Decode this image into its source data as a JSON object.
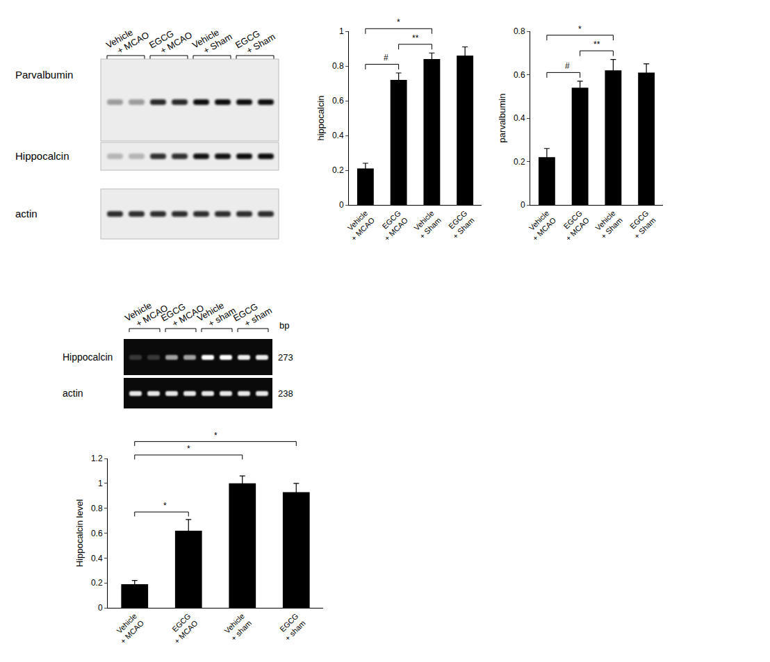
{
  "chart_data": [
    {
      "type": "bar",
      "ylabel": "hippocalcin",
      "categories": [
        "Vehicle + MCAO",
        "EGCG + MCAO",
        "Vehicle + Sham",
        "EGCG + Sham"
      ],
      "values": [
        0.21,
        0.72,
        0.84,
        0.86
      ],
      "errors": [
        0.03,
        0.04,
        0.035,
        0.05
      ],
      "color": "#000000",
      "ylim": [
        0,
        1
      ],
      "yticks": [
        0,
        0.2,
        0.4,
        0.6,
        0.8,
        1
      ],
      "grid": false,
      "comparisons": [
        {
          "from": 0,
          "to": 2,
          "label": "*"
        },
        {
          "from": 0,
          "to": 1,
          "label": "#"
        },
        {
          "from": 1,
          "to": 2,
          "label": "**"
        }
      ]
    },
    {
      "type": "bar",
      "ylabel": "parvalbumin",
      "categories": [
        "Vehicle + MCAO",
        "EGCG + MCAO",
        "Vehicle + Sham",
        "EGCG + Sham"
      ],
      "values": [
        0.22,
        0.54,
        0.62,
        0.61
      ],
      "errors": [
        0.04,
        0.03,
        0.05,
        0.04
      ],
      "color": "#000000",
      "ylim": [
        0,
        0.8
      ],
      "yticks": [
        0,
        0.2,
        0.4,
        0.6,
        0.8
      ],
      "grid": false,
      "comparisons": [
        {
          "from": 0,
          "to": 2,
          "label": "*"
        },
        {
          "from": 0,
          "to": 1,
          "label": "#"
        },
        {
          "from": 1,
          "to": 2,
          "label": "**"
        }
      ]
    },
    {
      "type": "bar",
      "ylabel": "Hippocalcin level",
      "categories": [
        "Vehicle + MCAO",
        "EGCG + MCAO",
        "Vehicle + sham",
        "EGCG + sham"
      ],
      "values": [
        0.19,
        0.62,
        1.0,
        0.93
      ],
      "errors": [
        0.03,
        0.09,
        0.06,
        0.07
      ],
      "color": "#000000",
      "ylim": [
        0,
        1.2
      ],
      "yticks": [
        0,
        0.2,
        0.4,
        0.6,
        0.8,
        1,
        1.2
      ],
      "grid": false,
      "comparisons": [
        {
          "from": 0,
          "to": 1,
          "label": "*"
        },
        {
          "from": 0,
          "to": 2,
          "label": "*"
        },
        {
          "from": 0,
          "to": 3,
          "label": "*"
        }
      ]
    }
  ],
  "western_blot": {
    "groups": [
      "Vehicle + MCAO",
      "EGCG + MCAO",
      "Vehicle + Sham",
      "EGCG + Sham"
    ],
    "rows": [
      "Parvalbumin",
      "Hippocalcin",
      "actin"
    ]
  },
  "rt_pcr": {
    "groups": [
      "Vehicle + MCAO",
      "EGCG + MCAO",
      "Vehicle + sham",
      "EGCG + sham"
    ],
    "size_unit": "bp",
    "rows": [
      {
        "label": "Hippocalcin",
        "size": 273
      },
      {
        "label": "actin",
        "size": 238
      }
    ]
  }
}
